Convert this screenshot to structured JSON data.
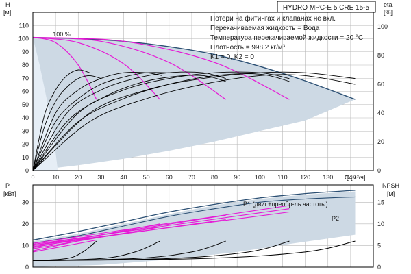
{
  "title": "HYDRO MPC-E 5 CRE 15-5",
  "notes": [
    "Потери на фитингах и клапанах не вкл.",
    "Перекачиваемая жидкость = Вода",
    "Температура перекачиваемой жидкости = 20 °C",
    "Плотность = 998.2 кг/м³",
    "K1 = 0, K2 = 0"
  ],
  "colors": {
    "envelope_fill": "#cdd9e4",
    "envelope_stroke": "#2b4f73",
    "magenta": "#e619d6",
    "black": "#000000",
    "grid": "#b8b8b8"
  },
  "chart_data": [
    {
      "type": "line",
      "panel": "head",
      "ylabel": "H",
      "yunit": "[м]",
      "xlabel": "Q",
      "xunit": "[м³/ч]",
      "xlim": [
        0,
        150
      ],
      "ylim": [
        0,
        120
      ],
      "xticks": [
        0,
        10,
        20,
        30,
        40,
        50,
        60,
        70,
        80,
        90,
        100,
        110,
        120,
        130,
        140
      ],
      "yticks": [
        0,
        10,
        20,
        30,
        40,
        50,
        60,
        70,
        80,
        90,
        100,
        110
      ],
      "annotation": "100 %",
      "envelope_top": [
        [
          0,
          101
        ],
        [
          20,
          100
        ],
        [
          40,
          98
        ],
        [
          60,
          94
        ],
        [
          80,
          88
        ],
        [
          100,
          79
        ],
        [
          120,
          68
        ],
        [
          142,
          54
        ]
      ],
      "envelope_bottom": [
        [
          0,
          0
        ],
        [
          20,
          4
        ],
        [
          40,
          9
        ],
        [
          60,
          15
        ],
        [
          80,
          22
        ],
        [
          100,
          30
        ],
        [
          120,
          38
        ],
        [
          142,
          54
        ]
      ],
      "light_region_top": [
        [
          0,
          101
        ],
        [
          3,
          80
        ],
        [
          6,
          55
        ],
        [
          9,
          28
        ],
        [
          11,
          0
        ]
      ],
      "series": [
        {
          "color": "magenta",
          "points": [
            [
              0,
              101
            ],
            [
              10,
              97
            ],
            [
              20,
              80
            ],
            [
              28,
              54
            ]
          ]
        },
        {
          "color": "magenta",
          "points": [
            [
              0,
              101
            ],
            [
              20,
              97
            ],
            [
              40,
              81
            ],
            [
              56,
              54
            ]
          ]
        },
        {
          "color": "magenta",
          "points": [
            [
              0,
              101
            ],
            [
              30,
              98
            ],
            [
              60,
              82
            ],
            [
              85,
              54
            ]
          ]
        },
        {
          "color": "magenta",
          "points": [
            [
              0,
              101
            ],
            [
              40,
              98
            ],
            [
              80,
              82
            ],
            [
              113,
              54
            ]
          ]
        }
      ],
      "eta": {
        "label": "eta",
        "unit": "[%]",
        "ylim": [
          0,
          110
        ],
        "yticks": [
          0,
          20,
          40,
          60,
          80,
          100
        ],
        "series": [
          {
            "points": [
              [
                0,
                0
              ],
              [
                5,
                38
              ],
              [
                10,
                56
              ],
              [
                15,
                66
              ],
              [
                20,
                70
              ],
              [
                25,
                68
              ]
            ]
          },
          {
            "points": [
              [
                0,
                0
              ],
              [
                5,
                30
              ],
              [
                10,
                48
              ],
              [
                15,
                58
              ],
              [
                20,
                64
              ],
              [
                25,
                66
              ],
              [
                30,
                64
              ]
            ]
          },
          {
            "points": [
              [
                0,
                0
              ],
              [
                10,
                40
              ],
              [
                20,
                56
              ],
              [
                30,
                64
              ],
              [
                40,
                68
              ],
              [
                50,
                68
              ],
              [
                57,
                66
              ]
            ]
          },
          {
            "points": [
              [
                0,
                0
              ],
              [
                10,
                34
              ],
              [
                20,
                50
              ],
              [
                30,
                60
              ],
              [
                40,
                65
              ],
              [
                50,
                68
              ],
              [
                60,
                68
              ]
            ]
          },
          {
            "points": [
              [
                0,
                0
              ],
              [
                15,
                40
              ],
              [
                30,
                56
              ],
              [
                45,
                64
              ],
              [
                60,
                68
              ],
              [
                75,
                68
              ],
              [
                85,
                64
              ]
            ]
          },
          {
            "points": [
              [
                0,
                0
              ],
              [
                15,
                34
              ],
              [
                30,
                50
              ],
              [
                45,
                60
              ],
              [
                60,
                65
              ],
              [
                75,
                66
              ],
              [
                85,
                62
              ]
            ]
          },
          {
            "points": [
              [
                0,
                0
              ],
              [
                20,
                40
              ],
              [
                40,
                56
              ],
              [
                60,
                64
              ],
              [
                80,
                68
              ],
              [
                100,
                68
              ],
              [
                113,
                64
              ]
            ]
          },
          {
            "points": [
              [
                0,
                0
              ],
              [
                20,
                34
              ],
              [
                40,
                50
              ],
              [
                60,
                60
              ],
              [
                80,
                66
              ],
              [
                100,
                67
              ],
              [
                113,
                62
              ]
            ]
          },
          {
            "points": [
              [
                0,
                0
              ],
              [
                25,
                40
              ],
              [
                50,
                56
              ],
              [
                75,
                64
              ],
              [
                100,
                68
              ],
              [
                120,
                68
              ],
              [
                142,
                64
              ]
            ]
          },
          {
            "points": [
              [
                0,
                0
              ],
              [
                25,
                34
              ],
              [
                50,
                50
              ],
              [
                75,
                60
              ],
              [
                100,
                66
              ],
              [
                120,
                66
              ],
              [
                142,
                60
              ]
            ]
          }
        ]
      }
    },
    {
      "type": "line",
      "panel": "power",
      "ylabel": "P",
      "yunit": "[кВт]",
      "xlim": [
        0,
        150
      ],
      "ylim": [
        0,
        38
      ],
      "xticks": [
        0,
        10,
        20,
        30,
        40,
        50,
        60,
        70,
        80,
        90,
        100,
        110,
        120,
        130,
        140
      ],
      "yticks": [
        0,
        10,
        20,
        30
      ],
      "labels": [
        "P1 (двиг.+преобр-ль частоты)",
        "P2"
      ],
      "envelope_top": [
        [
          0,
          12
        ],
        [
          20,
          15.5
        ],
        [
          40,
          20
        ],
        [
          60,
          24.5
        ],
        [
          80,
          28.5
        ],
        [
          100,
          31.5
        ],
        [
          120,
          33.5
        ],
        [
          142,
          35
        ]
      ],
      "envelope_bottom": [
        [
          0,
          0
        ],
        [
          30,
          1
        ],
        [
          60,
          3.5
        ],
        [
          90,
          7
        ],
        [
          115,
          11
        ],
        [
          142,
          15
        ]
      ],
      "p1_curve": [
        [
          0,
          12.5
        ],
        [
          20,
          16.5
        ],
        [
          40,
          21
        ],
        [
          60,
          25.5
        ],
        [
          80,
          29
        ],
        [
          100,
          32
        ],
        [
          120,
          34
        ],
        [
          142,
          35.5
        ]
      ],
      "p2_curve": [
        [
          0,
          11
        ],
        [
          20,
          14.5
        ],
        [
          40,
          19
        ],
        [
          60,
          23.5
        ],
        [
          80,
          27
        ],
        [
          100,
          30
        ],
        [
          120,
          31.5
        ],
        [
          142,
          32.5
        ]
      ],
      "series": [
        {
          "color": "magenta",
          "points": [
            [
              0,
              7.5
            ],
            [
              28,
              14
            ]
          ]
        },
        {
          "color": "magenta",
          "points": [
            [
              0,
              7
            ],
            [
              28,
              12.5
            ]
          ]
        },
        {
          "color": "magenta",
          "points": [
            [
              0,
              9
            ],
            [
              56,
              20
            ]
          ]
        },
        {
          "color": "magenta",
          "points": [
            [
              0,
              8.5
            ],
            [
              56,
              18.5
            ]
          ]
        },
        {
          "color": "magenta",
          "points": [
            [
              0,
              10
            ],
            [
              85,
              24
            ]
          ]
        },
        {
          "color": "magenta",
          "points": [
            [
              0,
              9.5
            ],
            [
              85,
              22
            ]
          ]
        },
        {
          "color": "magenta",
          "points": [
            [
              0,
              11
            ],
            [
              113,
              28.5
            ]
          ]
        },
        {
          "color": "magenta",
          "points": [
            [
              0,
              10.5
            ],
            [
              113,
              27
            ]
          ]
        },
        {
          "color": "magenta",
          "points": [
            [
              0,
              10
            ],
            [
              113,
              25.5
            ]
          ]
        }
      ],
      "npsh": {
        "label": "NPSH",
        "unit": "[м]",
        "ylim": [
          0,
          19
        ],
        "yticks": [
          0,
          5,
          10,
          15
        ],
        "series": [
          {
            "points": [
              [
                0,
                1.5
              ],
              [
                15,
                2
              ],
              [
                22,
                3.5
              ],
              [
                28,
                6
              ]
            ]
          },
          {
            "points": [
              [
                0,
                1.5
              ],
              [
                30,
                2
              ],
              [
                45,
                3.5
              ],
              [
                56,
                6
              ]
            ]
          },
          {
            "points": [
              [
                0,
                1.5
              ],
              [
                45,
                2
              ],
              [
                70,
                3.5
              ],
              [
                85,
                6
              ]
            ]
          },
          {
            "points": [
              [
                0,
                1.5
              ],
              [
                60,
                2
              ],
              [
                95,
                3.5
              ],
              [
                113,
                6
              ]
            ]
          },
          {
            "points": [
              [
                0,
                1.5
              ],
              [
                75,
                2
              ],
              [
                120,
                3.5
              ],
              [
                142,
                6
              ]
            ]
          }
        ]
      }
    }
  ]
}
